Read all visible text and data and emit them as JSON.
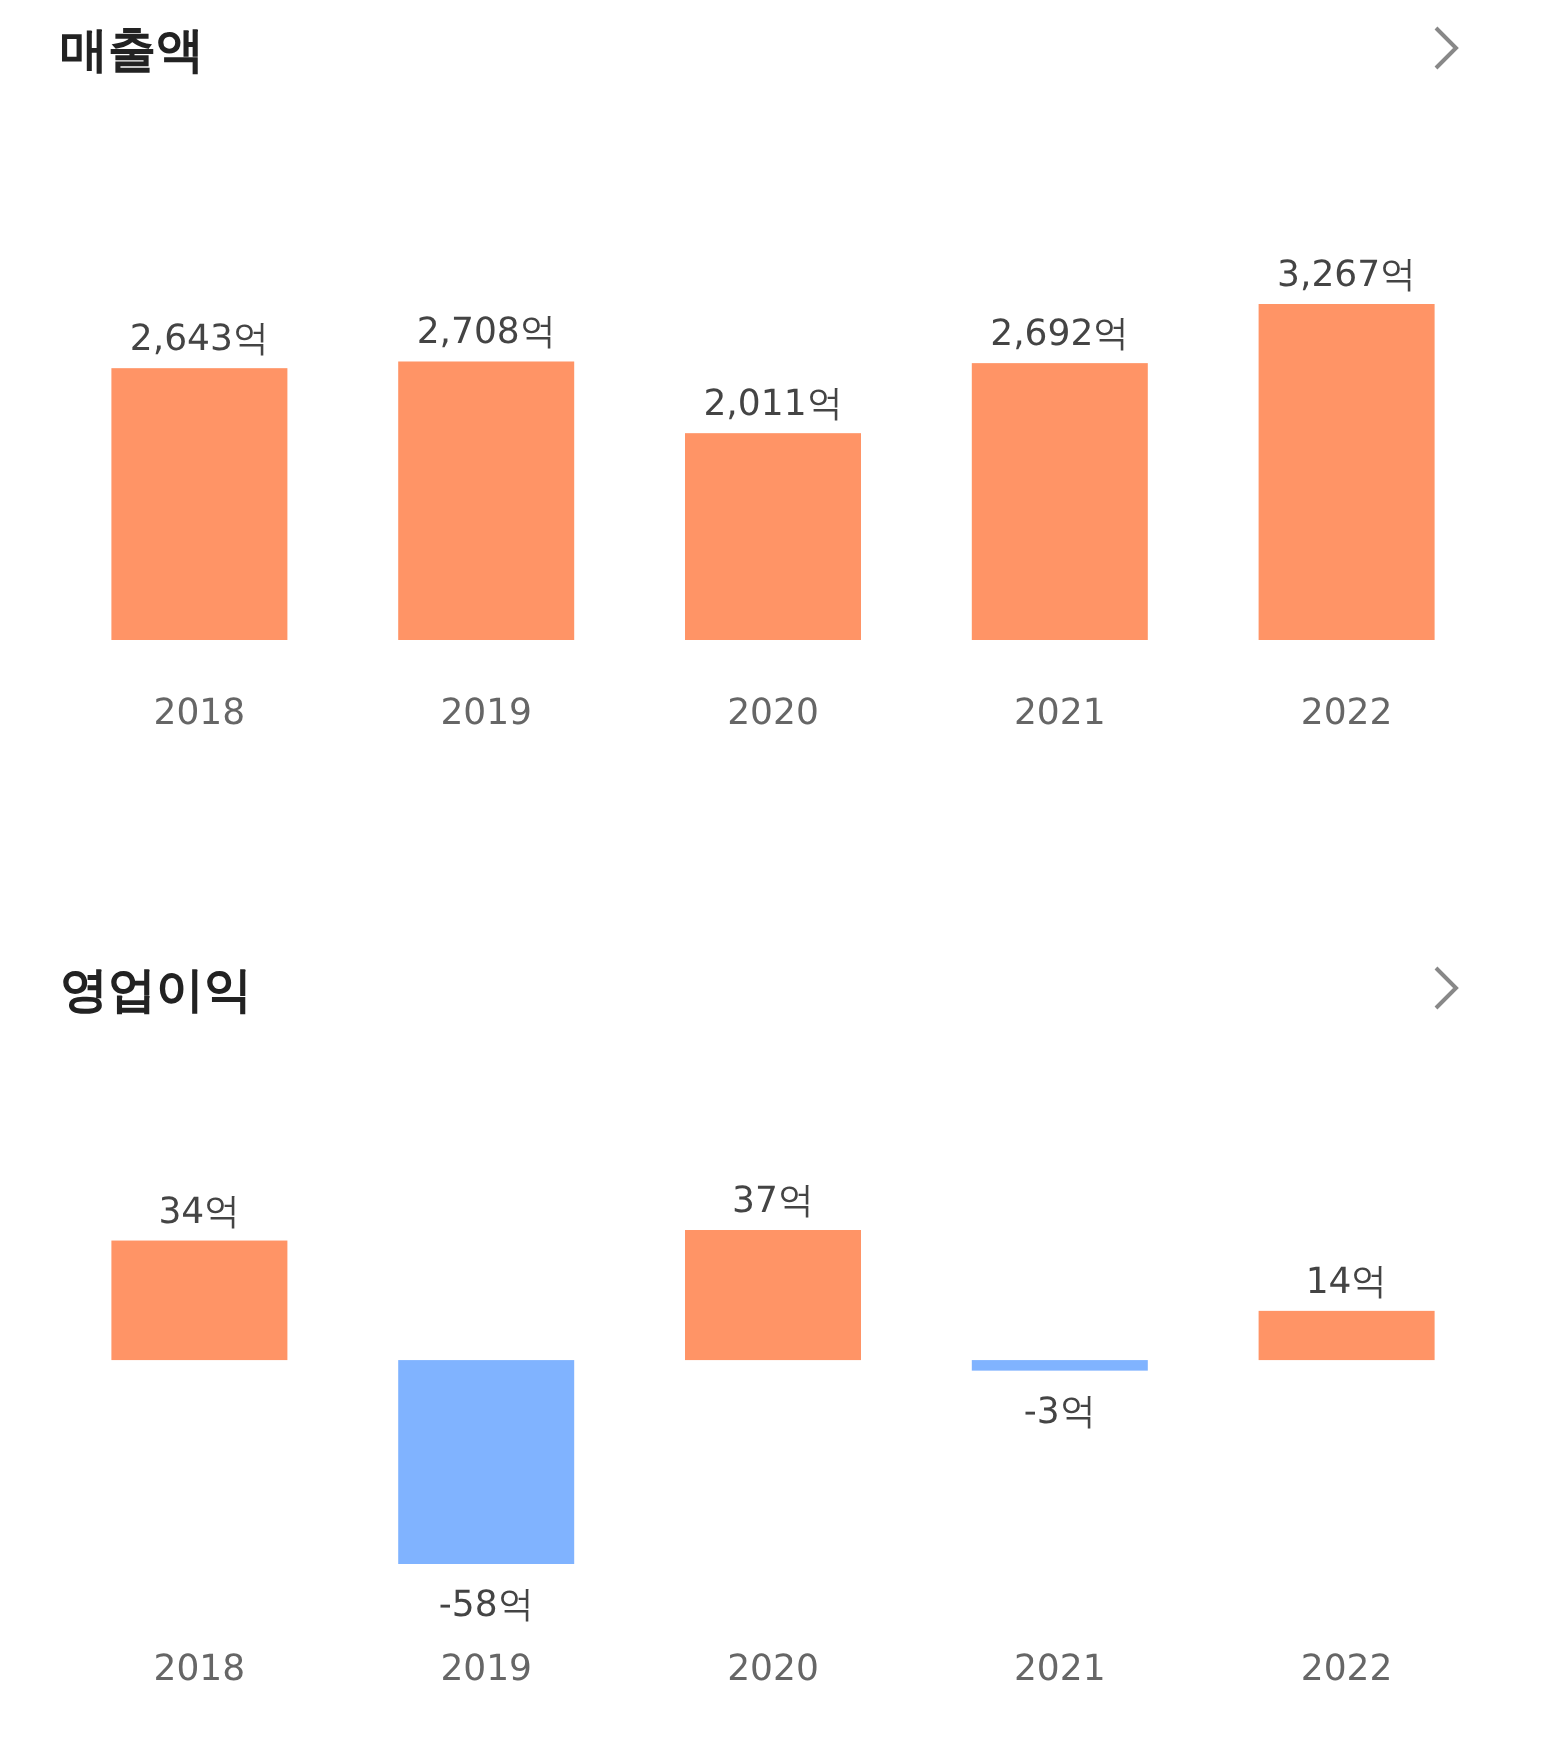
{
  "chart_data": [
    {
      "type": "bar",
      "title": "매출액",
      "categories": [
        "2018",
        "2019",
        "2020",
        "2021",
        "2022"
      ],
      "values": [
        2643,
        2708,
        2011,
        2692,
        3267
      ],
      "colors": [
        "#ff9466",
        "#ff9466",
        "#ff9466",
        "#ff9466",
        "#ff9466"
      ],
      "value_labels": [
        "2,643억",
        "2,708억",
        "2,011억",
        "2,692억",
        "3,267억"
      ]
    },
    {
      "type": "bar",
      "title": "영업이익",
      "categories": [
        "2018",
        "2019",
        "2020",
        "2021",
        "2022"
      ],
      "values": [
        34,
        -58,
        37,
        -3,
        14
      ],
      "colors": [
        "#ff9466",
        "#80b3ff",
        "#ff9466",
        "#80b3ff",
        "#ff9466"
      ],
      "value_labels": [
        "34억",
        "-58억",
        "37억",
        "-3억",
        "14억"
      ]
    }
  ]
}
